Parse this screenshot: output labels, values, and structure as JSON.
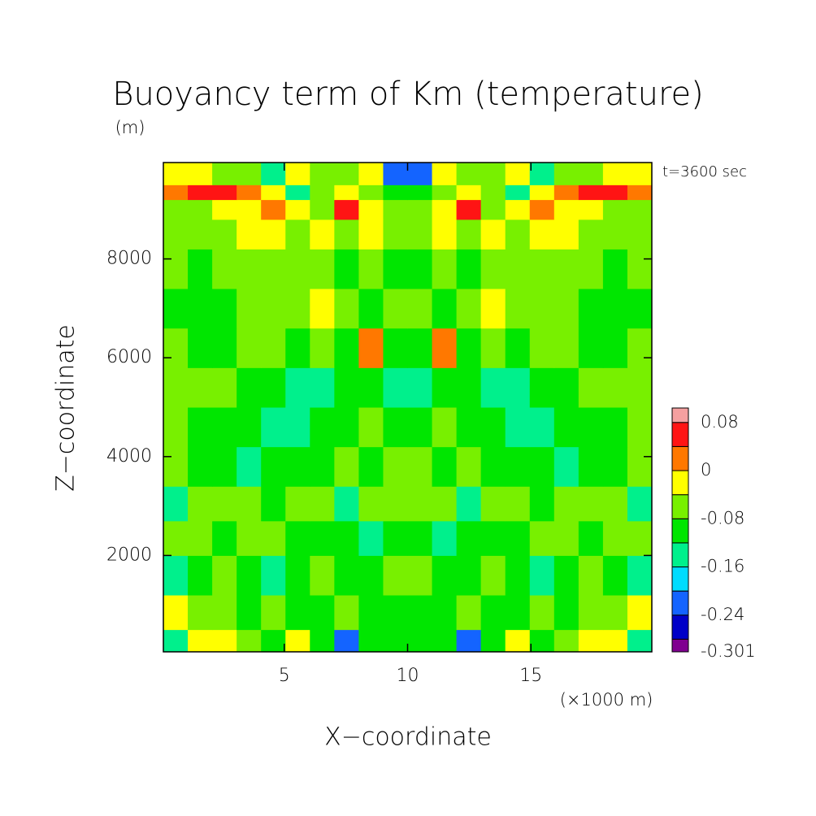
{
  "chart_data": {
    "type": "contour",
    "title": "Buoyancy term of Km (temperature)",
    "y_unit": "(m)",
    "annotation": "t=3600 sec",
    "x_unit": "(×1000 m)",
    "xlabel": "X−coordinate",
    "ylabel": "Z−coordinate",
    "xlim": [
      0.1,
      19.9
    ],
    "ylim": [
      50,
      9950
    ],
    "xticks": [
      5,
      10,
      15
    ],
    "yticks": [
      2000,
      4000,
      6000,
      8000
    ],
    "x_edges": [
      0.1,
      1.09,
      2.08,
      3.07,
      4.06,
      5.05,
      6.04,
      7.03,
      8.02,
      9.01,
      10,
      10.99,
      11.98,
      12.97,
      13.96,
      14.95,
      15.94,
      16.93,
      17.92,
      18.91,
      19.9
    ],
    "z_edges": [
      50,
      500,
      1200,
      2000,
      2700,
      3400,
      4200,
      5000,
      5800,
      6600,
      7400,
      8200,
      8800,
      9200,
      9500,
      9950
    ],
    "values": [
      [
        -0.14,
        -0.02,
        -0.02,
        -0.06,
        -0.1,
        -0.02,
        -0.1,
        -0.22,
        -0.1,
        -0.1,
        -0.1,
        -0.1,
        -0.22,
        -0.1,
        -0.02,
        -0.1,
        -0.06,
        -0.02,
        -0.02,
        -0.14
      ],
      [
        -0.02,
        -0.06,
        -0.06,
        -0.1,
        -0.06,
        -0.1,
        -0.1,
        -0.06,
        -0.1,
        -0.1,
        -0.1,
        -0.1,
        -0.06,
        -0.1,
        -0.1,
        -0.06,
        -0.1,
        -0.06,
        -0.06,
        -0.02
      ],
      [
        -0.14,
        -0.1,
        -0.06,
        -0.1,
        -0.14,
        -0.1,
        -0.06,
        -0.1,
        -0.1,
        -0.06,
        -0.06,
        -0.1,
        -0.1,
        -0.06,
        -0.1,
        -0.14,
        -0.1,
        -0.06,
        -0.1,
        -0.14
      ],
      [
        -0.06,
        -0.06,
        -0.1,
        -0.06,
        -0.06,
        -0.1,
        -0.1,
        -0.1,
        -0.14,
        -0.1,
        -0.1,
        -0.14,
        -0.1,
        -0.1,
        -0.1,
        -0.06,
        -0.06,
        -0.1,
        -0.06,
        -0.06
      ],
      [
        -0.14,
        -0.06,
        -0.06,
        -0.06,
        -0.1,
        -0.06,
        -0.06,
        -0.14,
        -0.06,
        -0.06,
        -0.06,
        -0.06,
        -0.14,
        -0.06,
        -0.06,
        -0.1,
        -0.06,
        -0.06,
        -0.06,
        -0.14
      ],
      [
        -0.06,
        -0.1,
        -0.1,
        -0.14,
        -0.1,
        -0.1,
        -0.1,
        -0.06,
        -0.1,
        -0.06,
        -0.06,
        -0.1,
        -0.06,
        -0.1,
        -0.1,
        -0.1,
        -0.14,
        -0.1,
        -0.1,
        -0.06
      ],
      [
        -0.06,
        -0.1,
        -0.1,
        -0.1,
        -0.14,
        -0.14,
        -0.1,
        -0.1,
        -0.06,
        -0.1,
        -0.1,
        -0.06,
        -0.1,
        -0.1,
        -0.14,
        -0.14,
        -0.1,
        -0.1,
        -0.1,
        -0.06
      ],
      [
        -0.06,
        -0.06,
        -0.06,
        -0.1,
        -0.1,
        -0.14,
        -0.14,
        -0.1,
        -0.1,
        -0.14,
        -0.14,
        -0.1,
        -0.1,
        -0.14,
        -0.14,
        -0.1,
        -0.1,
        -0.06,
        -0.06,
        -0.06
      ],
      [
        -0.06,
        -0.1,
        -0.1,
        -0.06,
        -0.06,
        -0.1,
        -0.06,
        -0.1,
        0.02,
        -0.1,
        -0.1,
        0.02,
        -0.1,
        -0.06,
        -0.1,
        -0.06,
        -0.06,
        -0.1,
        -0.1,
        -0.06
      ],
      [
        -0.1,
        -0.1,
        -0.1,
        -0.06,
        -0.06,
        -0.06,
        -0.02,
        -0.06,
        -0.1,
        -0.06,
        -0.06,
        -0.1,
        -0.06,
        -0.02,
        -0.06,
        -0.06,
        -0.06,
        -0.1,
        -0.1,
        -0.1
      ],
      [
        -0.06,
        -0.1,
        -0.06,
        -0.06,
        -0.06,
        -0.06,
        -0.06,
        -0.1,
        -0.06,
        -0.1,
        -0.1,
        -0.06,
        -0.1,
        -0.06,
        -0.06,
        -0.06,
        -0.06,
        -0.06,
        -0.1,
        -0.06
      ],
      [
        -0.06,
        -0.06,
        -0.06,
        -0.02,
        -0.02,
        -0.06,
        -0.02,
        -0.06,
        -0.02,
        -0.06,
        -0.06,
        -0.02,
        -0.06,
        -0.02,
        -0.06,
        -0.02,
        -0.02,
        -0.06,
        -0.06,
        -0.06
      ],
      [
        -0.06,
        -0.06,
        -0.02,
        -0.02,
        0.02,
        -0.02,
        -0.06,
        0.06,
        -0.02,
        -0.06,
        -0.06,
        -0.02,
        0.06,
        -0.06,
        -0.02,
        0.02,
        -0.02,
        -0.02,
        -0.06,
        -0.06
      ],
      [
        0.02,
        0.06,
        0.06,
        0.02,
        -0.02,
        -0.14,
        -0.06,
        -0.02,
        -0.06,
        -0.1,
        -0.1,
        -0.06,
        -0.02,
        -0.06,
        -0.14,
        -0.02,
        0.02,
        0.06,
        0.06,
        0.02
      ],
      [
        -0.02,
        -0.02,
        -0.06,
        -0.06,
        -0.14,
        -0.02,
        -0.06,
        -0.06,
        -0.02,
        -0.22,
        -0.22,
        -0.02,
        -0.06,
        -0.06,
        -0.02,
        -0.14,
        -0.06,
        -0.06,
        -0.02,
        -0.02
      ]
    ],
    "levels": [
      -0.301,
      -0.28,
      -0.24,
      -0.2,
      -0.16,
      -0.12,
      -0.08,
      -0.04,
      0,
      0.04,
      0.08,
      0.104
    ],
    "colors": [
      "#800090",
      "#0000c8",
      "#1464ff",
      "#00dcff",
      "#00f08c",
      "#00e600",
      "#78f000",
      "#ffff00",
      "#ff7800",
      "#ff1414",
      "#f5a0a0"
    ],
    "colorbar_ticks": [
      -0.301,
      -0.24,
      -0.16,
      -0.08,
      0,
      0.08
    ]
  }
}
